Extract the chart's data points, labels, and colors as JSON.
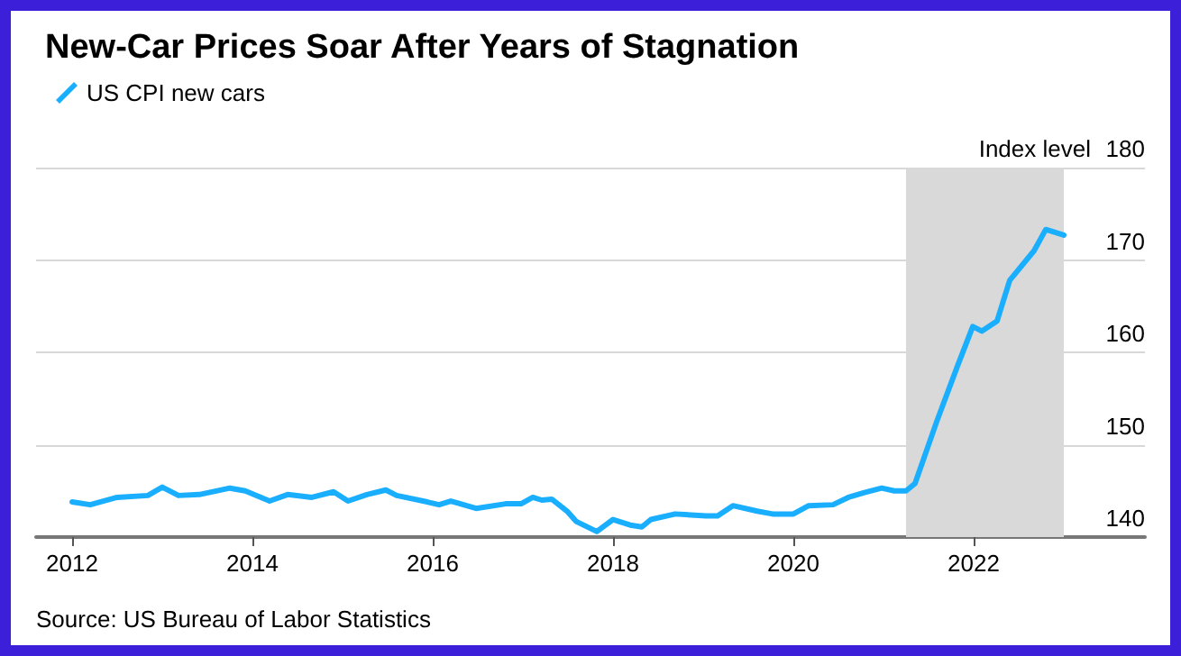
{
  "chart_data": {
    "type": "line",
    "title": "New-Car Prices Soar After Years of Stagnation",
    "ylabel": "Index level",
    "annotations": [
      "Source: US Bureau of Labor Statistics"
    ],
    "series": [
      {
        "name": "US CPI new cars",
        "color": "#1aaeff",
        "x": [
          2012.0,
          2012.2,
          2012.5,
          2012.84,
          2013.0,
          2013.18,
          2013.41,
          2013.75,
          2013.92,
          2014.19,
          2014.39,
          2014.66,
          2014.9,
          2015.06,
          2015.27,
          2015.48,
          2015.6,
          2015.94,
          2016.07,
          2016.2,
          2016.48,
          2016.81,
          2016.98,
          2017.11,
          2017.21,
          2017.32,
          2017.49,
          2017.59,
          2017.82,
          2018.0,
          2018.19,
          2018.32,
          2018.42,
          2018.69,
          2019.03,
          2019.16,
          2019.33,
          2019.6,
          2019.77,
          2020.0,
          2020.17,
          2020.44,
          2020.61,
          2020.78,
          2020.98,
          2021.12,
          2021.25,
          2021.35,
          2021.59,
          2021.82,
          2021.99,
          2022.09,
          2022.26,
          2022.4,
          2022.67,
          2022.8,
          2023.0
        ],
        "values": [
          143.8,
          143.5,
          144.3,
          144.5,
          145.4,
          144.5,
          144.6,
          145.3,
          145.0,
          143.9,
          144.6,
          144.3,
          144.9,
          143.9,
          144.6,
          145.1,
          144.5,
          143.8,
          143.5,
          143.9,
          143.1,
          143.6,
          143.6,
          144.3,
          144.0,
          144.1,
          142.8,
          141.7,
          140.6,
          141.9,
          141.3,
          141.1,
          141.9,
          142.5,
          142.3,
          142.3,
          143.4,
          142.8,
          142.5,
          142.5,
          143.4,
          143.5,
          144.3,
          144.8,
          145.3,
          145.0,
          145.0,
          145.8,
          152.5,
          158.5,
          162.8,
          162.3,
          163.4,
          167.8,
          171.0,
          173.3,
          172.7
        ]
      }
    ],
    "xlim": [
      2011.6,
      2023.9
    ],
    "xticks": [
      2012,
      2014,
      2016,
      2018,
      2020,
      2022
    ],
    "ylim": [
      140,
      180
    ],
    "yticks": [
      140,
      150,
      160,
      170,
      180
    ],
    "bands": [
      {
        "axis": "x",
        "from": 2021.25,
        "to": 2023.0,
        "color": "#d9d9d9"
      }
    ],
    "grid": "y",
    "legend": "top left",
    "marker": "none",
    "line_style": "solid"
  }
}
